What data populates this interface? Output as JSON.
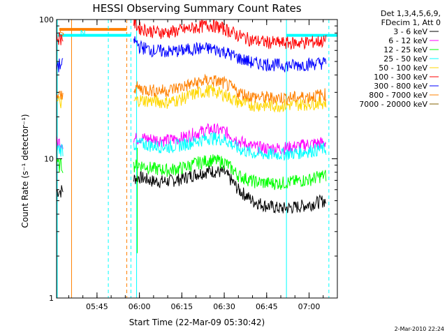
{
  "chart_data": {
    "type": "line",
    "title": "HESSI Observing Summary Count Rates",
    "xlabel": "Start Time (22-Mar-09 05:30:42)",
    "ylabel": "Count Rate (s⁻¹ detector⁻¹)",
    "y_scale": "log",
    "ylim": [
      1,
      100
    ],
    "y_ticks": [
      "1",
      "10",
      "100"
    ],
    "x_range": [
      "05:30:42",
      "07:10:00"
    ],
    "x_ticks": [
      "05:45",
      "06:00",
      "06:15",
      "06:30",
      "06:45",
      "07:00"
    ],
    "grid": false,
    "legend_position": "outside-right",
    "legend_header": [
      "Det 1,3,4,5,6,9,",
      "FDecim 1, Att 0"
    ],
    "series": [
      {
        "name": "3 - 6 keV",
        "color": "#000000",
        "before_gap": 5.9,
        "x": [
          "05:58",
          "06:00",
          "06:05",
          "06:10",
          "06:15",
          "06:20",
          "06:25",
          "06:30",
          "06:35",
          "06:40",
          "06:45",
          "06:50",
          "06:55",
          "07:00",
          "07:05"
        ],
        "y": [
          7.2,
          7.4,
          6.9,
          6.9,
          7.2,
          7.8,
          8.2,
          8.0,
          6.0,
          5.0,
          4.6,
          4.4,
          4.5,
          4.7,
          5.0
        ]
      },
      {
        "name": "6 - 12 keV",
        "color": "#ff00ff",
        "before_gap": 13.2,
        "x": [
          "05:58",
          "06:00",
          "06:05",
          "06:10",
          "06:15",
          "06:20",
          "06:25",
          "06:30",
          "06:35",
          "06:40",
          "06:45",
          "06:50",
          "06:55",
          "07:00",
          "07:05"
        ],
        "y": [
          13.8,
          14.2,
          13.8,
          13.6,
          14.1,
          15.3,
          16.3,
          15.8,
          13.5,
          12.2,
          11.9,
          11.9,
          12.2,
          12.8,
          13.1
        ]
      },
      {
        "name": "12 - 25 keV",
        "color": "#00ff00",
        "before_gap": 9.0,
        "x": [
          "05:58",
          "06:00",
          "06:05",
          "06:10",
          "06:15",
          "06:20",
          "06:25",
          "06:30",
          "06:35",
          "06:40",
          "06:45",
          "06:50",
          "06:55",
          "07:00",
          "07:05"
        ],
        "y": [
          8.9,
          9.1,
          8.5,
          8.3,
          8.6,
          9.3,
          9.8,
          9.5,
          7.6,
          6.9,
          6.7,
          6.7,
          6.9,
          7.1,
          7.6
        ]
      },
      {
        "name": "25 - 50 keV",
        "color": "#00ffff",
        "before_gap": 11.8,
        "x": [
          "05:58",
          "06:00",
          "06:05",
          "06:10",
          "06:15",
          "06:20",
          "06:25",
          "06:30",
          "06:35",
          "06:40",
          "06:45",
          "06:50",
          "06:55",
          "07:00",
          "07:05"
        ],
        "y": [
          12.6,
          12.9,
          12.4,
          12.2,
          12.6,
          13.4,
          14.2,
          13.8,
          11.8,
          11.0,
          10.8,
          10.8,
          11.0,
          11.4,
          11.8
        ]
      },
      {
        "name": "50 - 100 keV",
        "color": "#ffd700",
        "before_gap": 25.5,
        "x": [
          "05:58",
          "06:00",
          "06:05",
          "06:10",
          "06:15",
          "06:20",
          "06:25",
          "06:30",
          "06:35",
          "06:40",
          "06:45",
          "06:50",
          "06:55",
          "07:00",
          "07:05"
        ],
        "y": [
          26,
          26.5,
          26,
          25.5,
          27,
          29.5,
          31,
          29,
          25.5,
          24.5,
          24.2,
          24.2,
          24.5,
          25,
          25.5
        ]
      },
      {
        "name": "100 - 300 keV",
        "color": "#ff0000",
        "before_gap": 74,
        "x": [
          "05:58",
          "06:00",
          "06:05",
          "06:10",
          "06:15",
          "06:20",
          "06:25",
          "06:30",
          "06:35",
          "06:40",
          "06:45",
          "06:50",
          "06:55",
          "07:00",
          "07:05"
        ],
        "y": [
          95,
          87,
          82,
          81,
          84,
          88,
          92,
          86,
          77,
          71,
          69,
          68,
          68,
          69,
          70
        ]
      },
      {
        "name": "300 - 800 keV",
        "color": "#0000ff",
        "before_gap": 47,
        "x": [
          "05:58",
          "06:00",
          "06:05",
          "06:10",
          "06:15",
          "06:20",
          "06:25",
          "06:30",
          "06:35",
          "06:40",
          "06:45",
          "06:50",
          "06:55",
          "07:00",
          "07:05"
        ],
        "y": [
          72,
          64,
          60,
          59,
          60,
          62,
          62,
          59,
          53,
          49,
          48,
          47,
          47,
          48,
          49
        ]
      },
      {
        "name": "800 - 7000 keV",
        "color": "#ff8000",
        "before_gap": 28,
        "x": [
          "05:58",
          "06:00",
          "06:05",
          "06:10",
          "06:15",
          "06:20",
          "06:25",
          "06:30",
          "06:35",
          "06:40",
          "06:45",
          "06:50",
          "06:55",
          "07:00",
          "07:05"
        ],
        "y": [
          33,
          32,
          31,
          31,
          33,
          35,
          37,
          35,
          30,
          28,
          27.5,
          27.5,
          27.5,
          28,
          29
        ]
      },
      {
        "name": "7000 - 20000 keV",
        "color": "#806000",
        "before_gap": null,
        "x": [],
        "y": []
      }
    ],
    "annotations": [
      {
        "text": "S",
        "color": "#ff8000",
        "x": "05:30:42"
      },
      {
        "text": "N",
        "color": "#00ffff",
        "x": "05:38"
      }
    ],
    "saa_flag_level": 85,
    "night_flag_level": 77,
    "timestamp": "2-Mar-2010 22:24"
  }
}
